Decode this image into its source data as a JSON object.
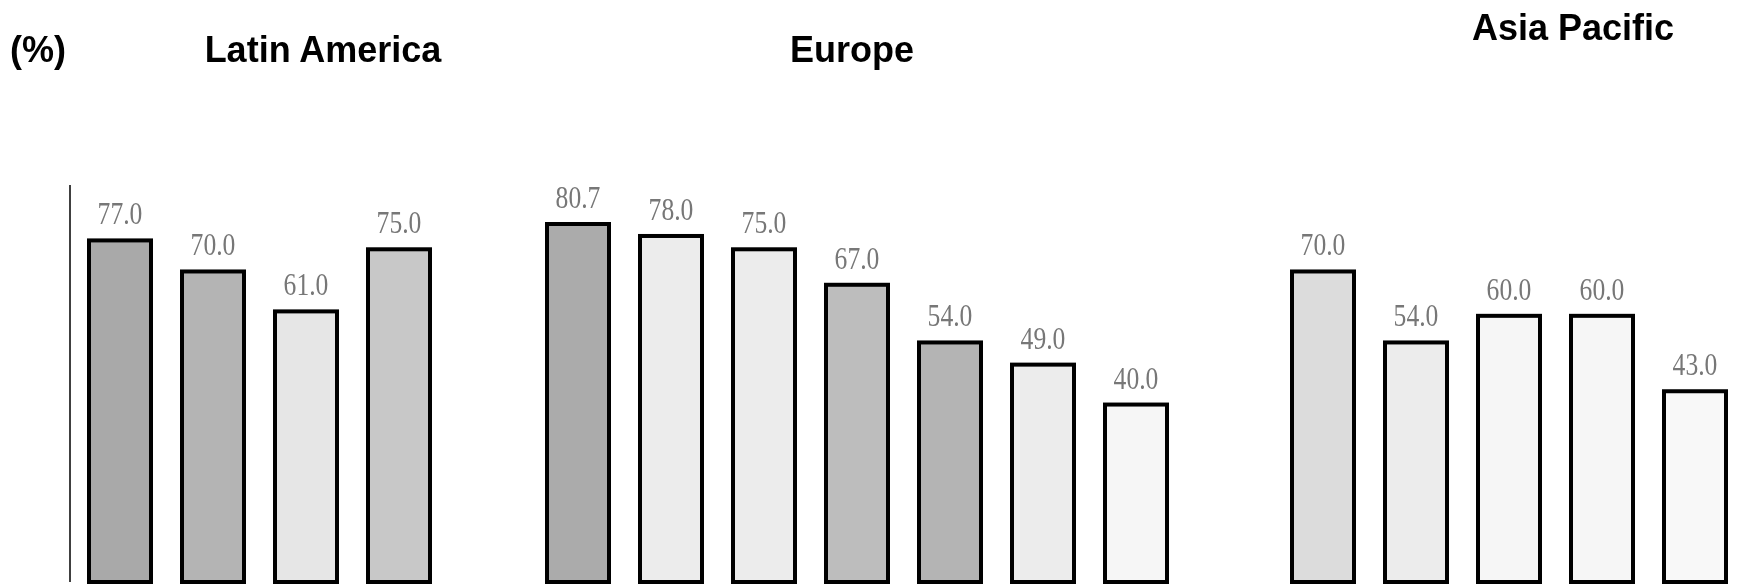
{
  "chart_data": [
    {
      "type": "bar",
      "title": "Latin America",
      "ylabel": "(%)",
      "categories": [
        null,
        null,
        null,
        null
      ],
      "values": [
        77.0,
        70.0,
        61.0,
        75.0
      ],
      "value_labels": [
        "77.0",
        "70.0",
        "61.0",
        "75.0"
      ],
      "colors": [
        "#a9a9a9",
        "#b4b4b4",
        "#e6e6e6",
        "#c8c8c8"
      ]
    },
    {
      "type": "bar",
      "title": "Europe",
      "categories": [
        null,
        null,
        null,
        null,
        null,
        null,
        null
      ],
      "values": [
        80.7,
        78.0,
        75.0,
        67.0,
        54.0,
        49.0,
        40.0
      ],
      "value_labels": [
        "80.7",
        "78.0",
        "75.0",
        "67.0",
        "54.0",
        "49.0",
        "40.0"
      ],
      "colors": [
        "#ababab",
        "#ececec",
        "#ececec",
        "#bdbdbd",
        "#b4b4b4",
        "#ececec",
        "#f6f6f6"
      ]
    },
    {
      "type": "bar",
      "title": "Asia Pacific",
      "categories": [
        null,
        null,
        null,
        null,
        null
      ],
      "values": [
        70.0,
        54.0,
        60.0,
        60.0,
        43.0
      ],
      "value_labels": [
        "70.0",
        "54.0",
        "60.0",
        "60.0",
        "43.0"
      ],
      "colors": [
        "#dcdcdc",
        "#ececec",
        "#f6f6f6",
        "#f6f6f6",
        "#f8f8f8"
      ]
    }
  ]
}
